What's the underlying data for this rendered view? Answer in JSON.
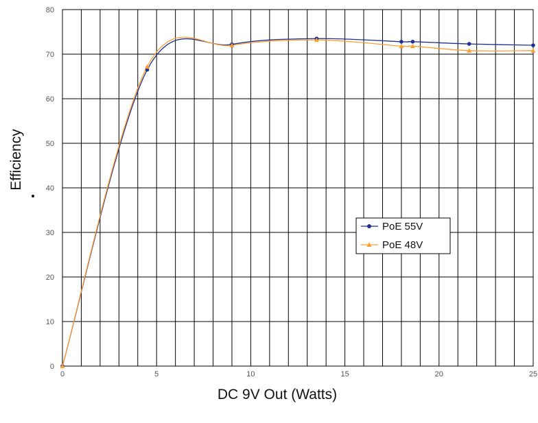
{
  "chart_data": {
    "type": "line",
    "title": "",
    "xlabel": "DC 9V Out (Watts)",
    "ylabel": "Efficiency",
    "xlim": [
      0,
      25
    ],
    "ylim": [
      0,
      80
    ],
    "x_ticks": [
      0,
      5,
      10,
      15,
      20,
      25
    ],
    "y_ticks": [
      0,
      10,
      20,
      30,
      40,
      50,
      60,
      70,
      80
    ],
    "x_tick_labels": [
      "0",
      "5",
      "10",
      "15",
      "20",
      "25"
    ],
    "y_tick_labels": [
      "0",
      "10",
      "20",
      "30",
      "40",
      "50",
      "60",
      "70",
      "80"
    ],
    "grid": true,
    "legend_position": "center-right",
    "series": [
      {
        "name": "PoE 55V",
        "color": "#1f2f8f",
        "marker": "circle",
        "points": [
          [
            0,
            0
          ],
          [
            4.5,
            66.5
          ],
          [
            9,
            72.2
          ],
          [
            13.5,
            73.5
          ],
          [
            18,
            72.8
          ],
          [
            18.6,
            72.8
          ],
          [
            21.6,
            72.3
          ],
          [
            25,
            72.0
          ]
        ]
      },
      {
        "name": "PoE 48V",
        "color": "#ff9f33",
        "marker": "triangle",
        "points": [
          [
            0,
            0
          ],
          [
            4.5,
            67.2
          ],
          [
            9,
            72.0
          ],
          [
            13.5,
            73.2
          ],
          [
            18,
            71.8
          ],
          [
            18.6,
            71.8
          ],
          [
            21.6,
            70.8
          ],
          [
            25,
            70.8
          ]
        ]
      }
    ]
  }
}
